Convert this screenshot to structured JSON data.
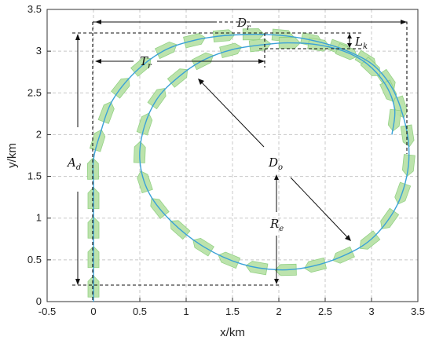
{
  "chart_data": {
    "type": "line",
    "xlabel": "x/km",
    "ylabel": "y/km",
    "xlim": [
      -0.5,
      3.5
    ],
    "ylim": [
      0,
      3.5
    ],
    "x_ticks": [
      "-0.5",
      "0",
      "0.5",
      "1",
      "1.5",
      "2",
      "2.5",
      "3",
      "3.5"
    ],
    "y_ticks": [
      "0",
      "0.5",
      "1",
      "1.5",
      "2",
      "2.5",
      "3",
      "3.5"
    ],
    "grid": true,
    "series": [
      {
        "color": "#3aa1d8",
        "x": [
          0,
          0,
          0,
          0,
          0,
          0.07,
          0.2,
          0.45,
          0.75,
          1.05,
          1.35,
          1.65,
          1.85,
          2.1,
          2.4,
          2.7,
          3.0,
          3.2,
          3.32,
          3.4,
          3.38,
          3.25,
          3.0,
          2.7,
          2.35,
          2.0,
          1.6,
          1.2,
          0.85,
          0.6,
          0.5,
          0.55,
          0.7,
          0.95,
          1.2,
          1.5,
          1.85,
          2.1,
          2.4,
          2.7,
          2.95,
          3.15,
          3.25,
          3.22
        ],
        "y": [
          0,
          0.5,
          1.0,
          1.4,
          1.7,
          2.0,
          2.4,
          2.75,
          3.0,
          3.12,
          3.18,
          3.2,
          3.2,
          3.18,
          3.12,
          3.02,
          2.85,
          2.6,
          2.3,
          1.9,
          1.5,
          1.1,
          0.75,
          0.55,
          0.42,
          0.38,
          0.45,
          0.65,
          0.95,
          1.3,
          1.7,
          2.1,
          2.45,
          2.72,
          2.9,
          3.02,
          3.08,
          3.1,
          3.08,
          3.0,
          2.85,
          2.6,
          2.3,
          2.0
        ]
      }
    ],
    "ship_colors": {
      "fill": "#b9e2a8",
      "stroke": "#8fcf7f"
    },
    "annotations": [
      {
        "label": "D",
        "sub": "r"
      },
      {
        "label": "L",
        "sub": "k"
      },
      {
        "label": "T",
        "sub": "r"
      },
      {
        "label": "A",
        "sub": "d"
      },
      {
        "label": "D",
        "sub": "o"
      },
      {
        "label": "R",
        "sub": "e"
      }
    ]
  }
}
